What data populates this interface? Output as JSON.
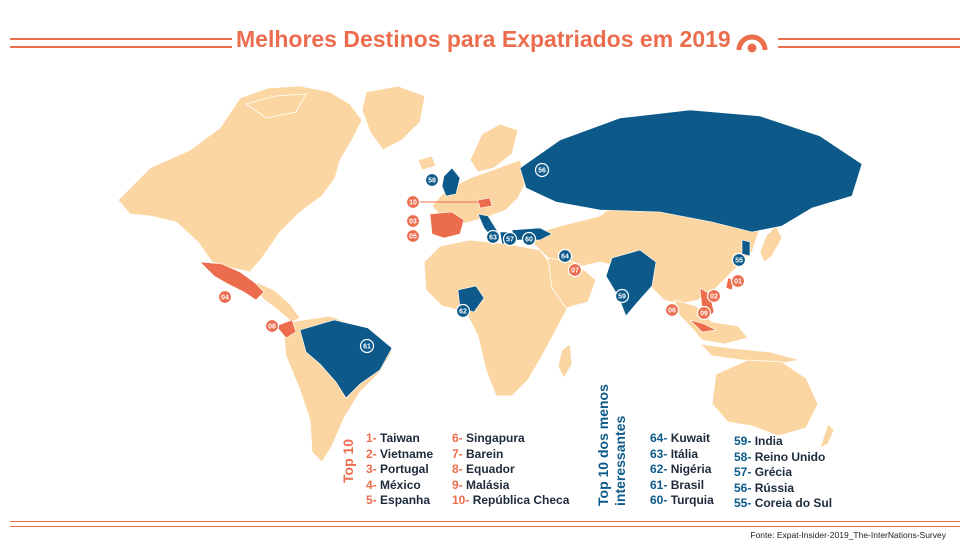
{
  "title": "Melhores Destinos para Expatriados em 2019",
  "colors": {
    "accent": "#ec6d4d",
    "dark_blue": "#0d5a8a",
    "land": "#fbd6a2"
  },
  "top10_label": "Top 10",
  "bottom10_label": "Top 10 dos menos interessantes",
  "top10_col1": [
    {
      "num": "1-",
      "name": "Taiwan"
    },
    {
      "num": "2-",
      "name": "Vietname"
    },
    {
      "num": "3-",
      "name": "Portugal"
    },
    {
      "num": "4-",
      "name": "México"
    },
    {
      "num": "5-",
      "name": "Espanha"
    }
  ],
  "top10_col2": [
    {
      "num": "6-",
      "name": "Singapura"
    },
    {
      "num": "7-",
      "name": "Barein"
    },
    {
      "num": "8-",
      "name": "Equador"
    },
    {
      "num": "9-",
      "name": "Malásia"
    },
    {
      "num": "10-",
      "name": "República Checa"
    }
  ],
  "bottom_col1": [
    {
      "num": "64-",
      "name": "Kuwait"
    },
    {
      "num": "63-",
      "name": "Itália"
    },
    {
      "num": "62-",
      "name": "Nigéria"
    },
    {
      "num": "61-",
      "name": "Brasil"
    },
    {
      "num": "60-",
      "name": "Turquia"
    }
  ],
  "bottom_col2": [
    {
      "num": "59-",
      "name": "India"
    },
    {
      "num": "58-",
      "name": "Reino Unido"
    },
    {
      "num": "57-",
      "name": "Grécia"
    },
    {
      "num": "56-",
      "name": "Rússia"
    },
    {
      "num": "55-",
      "name": "Coreia do Sul"
    }
  ],
  "pins_orange": [
    "01",
    "02",
    "03",
    "04",
    "05",
    "06",
    "07",
    "08",
    "09",
    "10"
  ],
  "pins_blue": [
    "55",
    "56",
    "57",
    "58",
    "59",
    "60",
    "61",
    "62",
    "63",
    "64"
  ],
  "source": "Fonte: Expat-Insider-2019_The-InterNations-Survey"
}
